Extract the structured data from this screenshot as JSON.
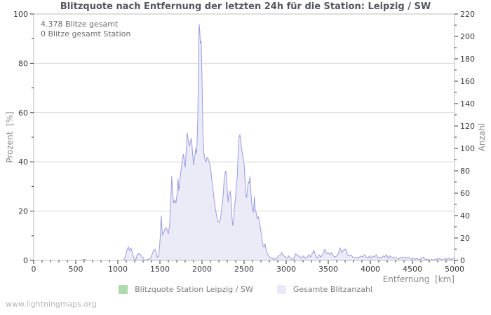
{
  "title": "Blitzquote nach Entfernung der letzten 24h für die Station: Leipzig / SW",
  "annotation": {
    "line1": "4.378 Blitze gesamt",
    "line2": "0 Blitze gesamt Station"
  },
  "footer": "www.lightningmaps.org",
  "legend": [
    {
      "label": "Blitzquote Station Leipzig / SW",
      "color": "#aedbae"
    },
    {
      "label": "Gesamte Blitzanzahl",
      "color": "#e9e9f8"
    }
  ],
  "chart_data": {
    "type": "area",
    "title": "Blitzquote nach Entfernung der letzten 24h für die Station: Leipzig / SW",
    "xlabel": "Entfernung  [km]",
    "ylabel_left": "Prozent  [%]",
    "ylabel_right": "Anzahl",
    "xlim": [
      0,
      5000
    ],
    "ylim_left": [
      0,
      100
    ],
    "ylim_right": [
      0,
      220
    ],
    "x_ticks": [
      0,
      500,
      1000,
      1500,
      2000,
      2500,
      3000,
      3500,
      4000,
      4500,
      5000
    ],
    "x_minor_step": 100,
    "y_left_ticks": [
      0,
      20,
      40,
      60,
      80,
      100
    ],
    "y_right_ticks": [
      0,
      20,
      40,
      60,
      80,
      100,
      120,
      140,
      160,
      180,
      200,
      220
    ],
    "y_minor_step": 10,
    "grid": "horizontal",
    "legend_position": "bottom",
    "colors": {
      "grid": "#d4d4d4",
      "frame": "#bdbdbd",
      "tick": "#333333"
    },
    "series": [
      {
        "name": "Blitzquote Station Leipzig / SW",
        "axis": "left",
        "unit": "percent",
        "fill_color": "#aedbae",
        "line_color": "#8cc68c",
        "points": [
          [
            0,
            0
          ],
          [
            5000,
            0
          ]
        ]
      },
      {
        "name": "Gesamte Blitzanzahl",
        "axis": "right",
        "unit": "count",
        "fill_color": "#ebebf8",
        "line_color": "#9b9be0",
        "points": [
          [
            0,
            0
          ],
          [
            200,
            0
          ],
          [
            400,
            0
          ],
          [
            560,
            0
          ],
          [
            600,
            1
          ],
          [
            630,
            0
          ],
          [
            800,
            0
          ],
          [
            1000,
            0
          ],
          [
            1060,
            0
          ],
          [
            1080,
            1
          ],
          [
            1095,
            5
          ],
          [
            1110,
            10
          ],
          [
            1125,
            12
          ],
          [
            1140,
            9
          ],
          [
            1155,
            11
          ],
          [
            1170,
            8
          ],
          [
            1185,
            3
          ],
          [
            1200,
            1
          ],
          [
            1215,
            1
          ],
          [
            1230,
            5
          ],
          [
            1250,
            6
          ],
          [
            1270,
            5
          ],
          [
            1290,
            3
          ],
          [
            1310,
            1
          ],
          [
            1330,
            0
          ],
          [
            1350,
            1
          ],
          [
            1370,
            1
          ],
          [
            1390,
            2
          ],
          [
            1410,
            6
          ],
          [
            1425,
            9
          ],
          [
            1440,
            10
          ],
          [
            1455,
            7
          ],
          [
            1470,
            3
          ],
          [
            1485,
            4
          ],
          [
            1495,
            12
          ],
          [
            1505,
            22
          ],
          [
            1515,
            40
          ],
          [
            1522,
            31
          ],
          [
            1530,
            23
          ],
          [
            1545,
            25
          ],
          [
            1560,
            28
          ],
          [
            1575,
            29
          ],
          [
            1590,
            26
          ],
          [
            1600,
            24
          ],
          [
            1615,
            31
          ],
          [
            1630,
            55
          ],
          [
            1640,
            75
          ],
          [
            1650,
            62
          ],
          [
            1662,
            51
          ],
          [
            1675,
            54
          ],
          [
            1690,
            51
          ],
          [
            1705,
            60
          ],
          [
            1715,
            73
          ],
          [
            1725,
            62
          ],
          [
            1740,
            73
          ],
          [
            1755,
            84
          ],
          [
            1767,
            90
          ],
          [
            1780,
            95
          ],
          [
            1790,
            88
          ],
          [
            1800,
            83
          ],
          [
            1812,
            97
          ],
          [
            1825,
            114
          ],
          [
            1838,
            106
          ],
          [
            1850,
            102
          ],
          [
            1862,
            106
          ],
          [
            1875,
            109
          ],
          [
            1888,
            95
          ],
          [
            1900,
            85
          ],
          [
            1912,
            92
          ],
          [
            1925,
            100
          ],
          [
            1932,
            95
          ],
          [
            1940,
            103
          ],
          [
            1950,
            128
          ],
          [
            1958,
            176
          ],
          [
            1965,
            211
          ],
          [
            1972,
            207
          ],
          [
            1980,
            194
          ],
          [
            1990,
            196
          ],
          [
            1998,
            169
          ],
          [
            2005,
            141
          ],
          [
            2012,
            114
          ],
          [
            2020,
            97
          ],
          [
            2035,
            90
          ],
          [
            2048,
            88
          ],
          [
            2060,
            92
          ],
          [
            2072,
            91
          ],
          [
            2085,
            88
          ],
          [
            2100,
            84
          ],
          [
            2115,
            73
          ],
          [
            2130,
            64
          ],
          [
            2145,
            54
          ],
          [
            2160,
            46
          ],
          [
            2175,
            39
          ],
          [
            2190,
            35
          ],
          [
            2205,
            34
          ],
          [
            2220,
            37
          ],
          [
            2235,
            47
          ],
          [
            2250,
            57
          ],
          [
            2265,
            74
          ],
          [
            2280,
            80
          ],
          [
            2290,
            77
          ],
          [
            2300,
            62
          ],
          [
            2310,
            52
          ],
          [
            2322,
            59
          ],
          [
            2335,
            62
          ],
          [
            2345,
            55
          ],
          [
            2355,
            39
          ],
          [
            2365,
            31
          ],
          [
            2375,
            34
          ],
          [
            2385,
            48
          ],
          [
            2395,
            53
          ],
          [
            2410,
            68
          ],
          [
            2420,
            77
          ],
          [
            2430,
            97
          ],
          [
            2440,
            110
          ],
          [
            2450,
            112
          ],
          [
            2460,
            107
          ],
          [
            2470,
            99
          ],
          [
            2480,
            96
          ],
          [
            2490,
            90
          ],
          [
            2500,
            86
          ],
          [
            2510,
            73
          ],
          [
            2520,
            59
          ],
          [
            2530,
            56
          ],
          [
            2540,
            64
          ],
          [
            2550,
            70
          ],
          [
            2560,
            69
          ],
          [
            2570,
            75
          ],
          [
            2580,
            62
          ],
          [
            2590,
            51
          ],
          [
            2600,
            46
          ],
          [
            2612,
            43
          ],
          [
            2622,
            57
          ],
          [
            2632,
            46
          ],
          [
            2642,
            43
          ],
          [
            2655,
            37
          ],
          [
            2668,
            39
          ],
          [
            2680,
            36
          ],
          [
            2692,
            30
          ],
          [
            2702,
            25
          ],
          [
            2715,
            18
          ],
          [
            2725,
            13
          ],
          [
            2735,
            12
          ],
          [
            2748,
            15
          ],
          [
            2760,
            10
          ],
          [
            2772,
            7
          ],
          [
            2785,
            5
          ],
          [
            2800,
            3
          ],
          [
            2830,
            2
          ],
          [
            2860,
            1
          ],
          [
            2890,
            2
          ],
          [
            2910,
            4
          ],
          [
            2930,
            5
          ],
          [
            2950,
            7
          ],
          [
            2970,
            4
          ],
          [
            2990,
            3
          ],
          [
            3010,
            2
          ],
          [
            3030,
            4
          ],
          [
            3050,
            2
          ],
          [
            3070,
            1
          ],
          [
            3090,
            1
          ],
          [
            3110,
            6
          ],
          [
            3125,
            5
          ],
          [
            3145,
            4
          ],
          [
            3165,
            3
          ],
          [
            3185,
            2
          ],
          [
            3205,
            4
          ],
          [
            3225,
            2
          ],
          [
            3250,
            3
          ],
          [
            3270,
            5
          ],
          [
            3290,
            3
          ],
          [
            3310,
            6
          ],
          [
            3330,
            9
          ],
          [
            3350,
            4
          ],
          [
            3370,
            2
          ],
          [
            3390,
            5
          ],
          [
            3410,
            3
          ],
          [
            3430,
            5
          ],
          [
            3460,
            10
          ],
          [
            3480,
            6
          ],
          [
            3500,
            7
          ],
          [
            3520,
            5
          ],
          [
            3540,
            7
          ],
          [
            3560,
            4
          ],
          [
            3580,
            3
          ],
          [
            3600,
            4
          ],
          [
            3620,
            6
          ],
          [
            3640,
            11
          ],
          [
            3660,
            7
          ],
          [
            3680,
            9
          ],
          [
            3700,
            10
          ],
          [
            3715,
            9
          ],
          [
            3730,
            5
          ],
          [
            3750,
            4
          ],
          [
            3770,
            5
          ],
          [
            3790,
            3
          ],
          [
            3810,
            2
          ],
          [
            3830,
            3
          ],
          [
            3850,
            2
          ],
          [
            3870,
            3
          ],
          [
            3890,
            4
          ],
          [
            3910,
            3
          ],
          [
            3930,
            5
          ],
          [
            3950,
            3
          ],
          [
            3970,
            2
          ],
          [
            3990,
            4
          ],
          [
            4010,
            2
          ],
          [
            4030,
            4
          ],
          [
            4050,
            3
          ],
          [
            4070,
            5
          ],
          [
            4090,
            2
          ],
          [
            4110,
            3
          ],
          [
            4130,
            2
          ],
          [
            4150,
            4
          ],
          [
            4170,
            3
          ],
          [
            4190,
            5
          ],
          [
            4210,
            2
          ],
          [
            4230,
            4
          ],
          [
            4250,
            3
          ],
          [
            4270,
            2
          ],
          [
            4290,
            3
          ],
          [
            4310,
            2
          ],
          [
            4330,
            1
          ],
          [
            4350,
            2
          ],
          [
            4370,
            3
          ],
          [
            4390,
            2
          ],
          [
            4410,
            3
          ],
          [
            4430,
            2
          ],
          [
            4450,
            3
          ],
          [
            4470,
            2
          ],
          [
            4490,
            1
          ],
          [
            4510,
            2
          ],
          [
            4530,
            1
          ],
          [
            4550,
            2
          ],
          [
            4570,
            1
          ],
          [
            4590,
            1
          ],
          [
            4610,
            2
          ],
          [
            4630,
            3
          ],
          [
            4650,
            1
          ],
          [
            4670,
            1
          ],
          [
            4690,
            1
          ],
          [
            4710,
            0
          ],
          [
            4730,
            1
          ],
          [
            4750,
            0
          ],
          [
            4770,
            1
          ],
          [
            4790,
            1
          ],
          [
            4810,
            2
          ],
          [
            4830,
            1
          ],
          [
            4850,
            1
          ],
          [
            4870,
            0
          ],
          [
            4890,
            2
          ],
          [
            4910,
            1
          ],
          [
            4930,
            2
          ],
          [
            4950,
            1
          ],
          [
            4970,
            1
          ],
          [
            4990,
            2
          ],
          [
            5000,
            1
          ]
        ]
      }
    ]
  }
}
